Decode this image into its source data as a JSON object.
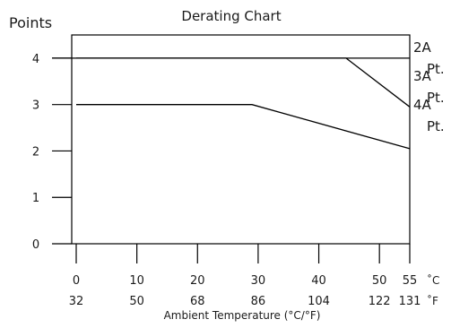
{
  "chart_data": {
    "type": "line",
    "title": "Derating Chart",
    "ylabel": "Points",
    "xlabel": "Ambient Temperature (°C/°F)",
    "xlim": [
      0,
      55
    ],
    "ylim": [
      0,
      4.5
    ],
    "x_ticks_c": [
      {
        "c": 0,
        "label": "0"
      },
      {
        "c": 10,
        "label": "10"
      },
      {
        "c": 20,
        "label": "20"
      },
      {
        "c": 30,
        "label": "30"
      },
      {
        "c": 40,
        "label": "40"
      },
      {
        "c": 50,
        "label": "50"
      },
      {
        "c": 55,
        "label": "55"
      }
    ],
    "x_ticks_f": [
      {
        "c": 0,
        "label": "32"
      },
      {
        "c": 10,
        "label": "50"
      },
      {
        "c": 20,
        "label": "68"
      },
      {
        "c": 30,
        "label": "86"
      },
      {
        "c": 40,
        "label": "104"
      },
      {
        "c": 50,
        "label": "122"
      },
      {
        "c": 55,
        "label": "131"
      }
    ],
    "unit_c": "˚C",
    "unit_f": "˚F",
    "y_ticks": [
      0,
      1,
      2,
      3,
      4
    ],
    "series": [
      {
        "name": "2A Pt.",
        "label_lines": [
          "2A",
          "Pt."
        ],
        "x": [
          0,
          44.5,
          55
        ],
        "y": [
          4,
          4,
          2.95
        ]
      },
      {
        "name": "3A Pt.",
        "label_lines": [
          "3A",
          "Pt."
        ],
        "x": [
          0,
          29,
          55
        ],
        "y": [
          3,
          3,
          2.05
        ]
      },
      {
        "name": "4A Pt.",
        "label_lines": [
          "4A",
          "Pt."
        ],
        "x": [],
        "y": []
      }
    ],
    "reference_lines": [
      {
        "y": 4,
        "x": [
          0,
          55
        ]
      }
    ],
    "grid": false
  }
}
